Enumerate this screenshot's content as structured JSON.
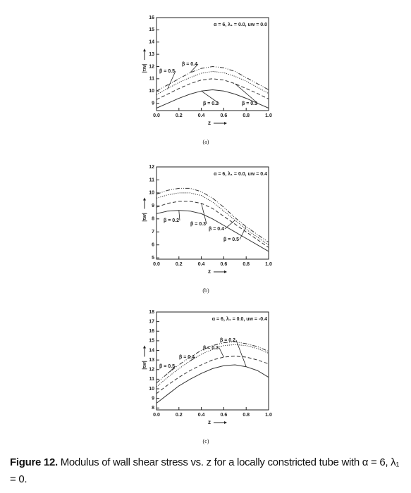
{
  "chart_data": [
    {
      "type": "line",
      "panel_label": "(a)",
      "annotation": "α = 6, λ₁ = 0.0, uw = 0.0",
      "x_label": "z",
      "y_label": "|τw|",
      "x": [
        0,
        0.1,
        0.2,
        0.3,
        0.4,
        0.5,
        0.6,
        0.7,
        0.8,
        0.9,
        1.0
      ],
      "xlim": [
        0,
        1
      ],
      "xticks": [
        {
          "value": 0,
          "label": "0.0"
        },
        0.2,
        0.4,
        0.6,
        0.8,
        {
          "value": 1,
          "label": "1.0"
        }
      ],
      "ylim": [
        8.4,
        16
      ],
      "yticks": [
        9,
        10,
        11,
        12,
        13,
        14,
        15,
        16
      ],
      "series": [
        {
          "name": "β = 0.2",
          "color": "#333333",
          "style": "solid",
          "values": [
            8.6,
            9.0,
            9.4,
            9.75,
            10.0,
            10.1,
            10.0,
            9.75,
            9.4,
            9.0,
            8.6
          ]
        },
        {
          "name": "β = 0.3",
          "color": "#333333",
          "style": "dashed",
          "values": [
            9.3,
            9.75,
            10.2,
            10.6,
            10.9,
            11.0,
            10.9,
            10.6,
            10.2,
            9.8,
            9.35
          ]
        },
        {
          "name": "β = 0.4",
          "color": "#333333",
          "style": "dashdot",
          "values": [
            10.0,
            10.5,
            11.0,
            11.5,
            11.85,
            12.0,
            11.9,
            11.6,
            11.1,
            10.6,
            10.1
          ]
        },
        {
          "name": "β = 0.5",
          "color": "#333333",
          "style": "dotted",
          "values": [
            9.7,
            10.2,
            10.7,
            11.1,
            11.45,
            11.6,
            11.5,
            11.2,
            10.8,
            10.3,
            9.8
          ]
        }
      ]
    },
    {
      "type": "line",
      "panel_label": "(b)",
      "annotation": "α = 6, λ₁ = 0.0, uw = 0.4",
      "x_label": "z",
      "y_label": "|τw|",
      "x": [
        0,
        0.1,
        0.2,
        0.3,
        0.4,
        0.5,
        0.6,
        0.7,
        0.8,
        0.9,
        1.0
      ],
      "xlim": [
        0,
        1
      ],
      "xticks": [
        {
          "value": 0,
          "label": "0.0"
        },
        0.2,
        0.4,
        0.6,
        0.8,
        {
          "value": 1,
          "label": "1.0"
        }
      ],
      "ylim": [
        4.9,
        12
      ],
      "yticks": [
        5,
        6,
        7,
        8,
        9,
        10,
        11,
        12
      ],
      "series": [
        {
          "name": "β = 0.2",
          "color": "#333333",
          "style": "solid",
          "values": [
            8.4,
            8.6,
            8.65,
            8.6,
            8.4,
            8.0,
            7.5,
            7.0,
            6.5,
            6.0,
            5.5
          ]
        },
        {
          "name": "β = 0.3",
          "color": "#333333",
          "style": "dashed",
          "values": [
            8.9,
            9.2,
            9.35,
            9.35,
            9.2,
            8.8,
            8.2,
            7.6,
            7.0,
            6.4,
            5.8
          ]
        },
        {
          "name": "β = 0.4",
          "color": "#333333",
          "style": "dotted",
          "values": [
            9.6,
            9.85,
            10.0,
            10.0,
            9.8,
            9.3,
            8.6,
            7.9,
            7.2,
            6.6,
            6.0
          ]
        },
        {
          "name": "β = 0.5",
          "color": "#333333",
          "style": "dashdot",
          "values": [
            9.9,
            10.2,
            10.35,
            10.35,
            10.1,
            9.6,
            8.9,
            8.1,
            7.4,
            6.8,
            6.2
          ]
        }
      ]
    },
    {
      "type": "line",
      "panel_label": "(c)",
      "annotation": "α = 6, λ₁ = 0.0, uw = -0.4",
      "x_label": "z",
      "y_label": "|τw|",
      "x": [
        0,
        0.1,
        0.2,
        0.3,
        0.4,
        0.5,
        0.6,
        0.7,
        0.8,
        0.9,
        1.0
      ],
      "xlim": [
        0,
        1
      ],
      "xticks": [
        {
          "value": 0,
          "label": "0.0"
        },
        0.2,
        0.4,
        0.6,
        0.8,
        {
          "value": 1,
          "label": "1.0"
        }
      ],
      "ylim": [
        7.8,
        18
      ],
      "yticks": [
        8,
        9,
        10,
        11,
        12,
        13,
        14,
        15,
        16,
        17,
        18
      ],
      "series": [
        {
          "name": "β = 0.2",
          "color": "#333333",
          "style": "solid",
          "values": [
            8.5,
            9.4,
            10.3,
            11.0,
            11.6,
            12.1,
            12.4,
            12.5,
            12.3,
            11.9,
            11.2
          ]
        },
        {
          "name": "β = 0.3",
          "color": "#333333",
          "style": "dashed",
          "values": [
            9.5,
            10.4,
            11.2,
            11.9,
            12.5,
            13.0,
            13.3,
            13.4,
            13.3,
            13.0,
            12.6
          ]
        },
        {
          "name": "β = 0.4",
          "color": "#333333",
          "style": "dotted",
          "values": [
            10.2,
            11.2,
            12.1,
            12.9,
            13.6,
            14.1,
            14.5,
            14.6,
            14.5,
            14.2,
            13.7
          ]
        },
        {
          "name": "β = 0.5",
          "color": "#333333",
          "style": "dashdot",
          "values": [
            10.6,
            11.6,
            12.5,
            13.3,
            14.0,
            14.5,
            14.8,
            14.9,
            14.7,
            14.4,
            13.9
          ]
        }
      ]
    }
  ],
  "caption": {
    "label": "Figure 12.",
    "text": "Modulus of wall shear stress vs. z for a locally constricted tube with α = 6, λ₁ = 0."
  }
}
